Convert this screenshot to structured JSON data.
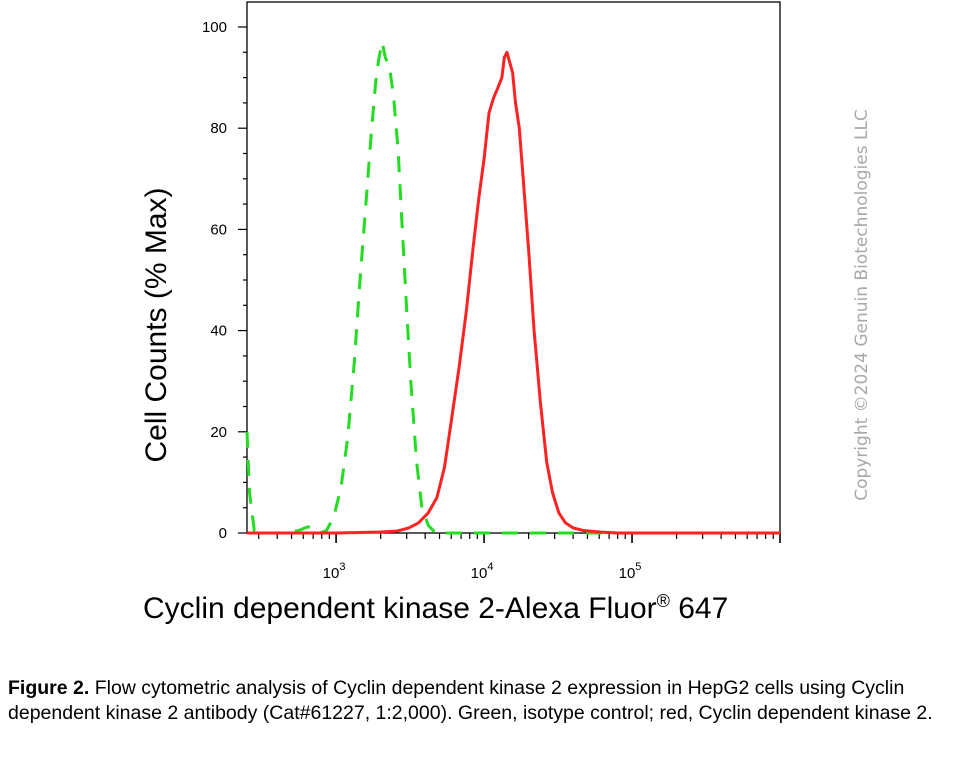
{
  "chart_data": {
    "type": "line",
    "ylabel": "Cell Counts (% Max)",
    "xlabel": "Cyclin dependent kinase 2-Alexa Fluor",
    "xlabel_sup": "®",
    "xlabel_suffix": " 647",
    "x_scale": "log",
    "xlim": [
      250,
      1000000
    ],
    "ylim": [
      0,
      100
    ],
    "y_ticks": [
      0,
      20,
      40,
      60,
      80,
      100
    ],
    "x_ticks": [
      {
        "value": 1000,
        "base": "10",
        "exp": "3"
      },
      {
        "value": 10000,
        "base": "10",
        "exp": "4"
      },
      {
        "value": 100000,
        "base": "10",
        "exp": "5"
      }
    ],
    "grid": false,
    "legend": "none",
    "series": [
      {
        "color": "#22dd22",
        "style": "dashed",
        "points": [
          [
            250,
            20
          ],
          [
            260,
            8
          ],
          [
            280,
            0.5
          ],
          [
            320,
            0
          ],
          [
            450,
            0
          ],
          [
            560,
            0.5
          ],
          [
            640,
            1.2
          ],
          [
            720,
            1
          ],
          [
            780,
            0
          ],
          [
            860,
            0.5
          ],
          [
            960,
            3
          ],
          [
            1080,
            9
          ],
          [
            1200,
            19
          ],
          [
            1330,
            34
          ],
          [
            1450,
            50
          ],
          [
            1580,
            64
          ],
          [
            1720,
            78
          ],
          [
            1850,
            89
          ],
          [
            1950,
            94
          ],
          [
            2050,
            97
          ],
          [
            2150,
            94
          ],
          [
            2300,
            92
          ],
          [
            2450,
            86
          ],
          [
            2620,
            76
          ],
          [
            2800,
            60
          ],
          [
            3000,
            44
          ],
          [
            3200,
            30
          ],
          [
            3500,
            14
          ],
          [
            3800,
            5
          ],
          [
            4200,
            1.5
          ],
          [
            4700,
            0
          ],
          [
            6000,
            0
          ],
          [
            1000000,
            0
          ]
        ]
      },
      {
        "color": "#ff2222",
        "style": "solid",
        "points": [
          [
            250,
            0
          ],
          [
            1000,
            0
          ],
          [
            2000,
            0.2
          ],
          [
            2600,
            0.4
          ],
          [
            3100,
            1
          ],
          [
            3600,
            2
          ],
          [
            4200,
            4
          ],
          [
            4800,
            7
          ],
          [
            5400,
            13
          ],
          [
            6000,
            22
          ],
          [
            6800,
            33
          ],
          [
            7600,
            44
          ],
          [
            8400,
            56
          ],
          [
            9200,
            66
          ],
          [
            10000,
            74
          ],
          [
            10800,
            83
          ],
          [
            11600,
            86
          ],
          [
            12400,
            88
          ],
          [
            13200,
            90
          ],
          [
            13700,
            94
          ],
          [
            14300,
            95
          ],
          [
            14900,
            93
          ],
          [
            15600,
            91
          ],
          [
            16300,
            85
          ],
          [
            17300,
            80
          ],
          [
            18500,
            69
          ],
          [
            20000,
            56
          ],
          [
            21800,
            40
          ],
          [
            24000,
            26
          ],
          [
            26500,
            14
          ],
          [
            29000,
            8
          ],
          [
            32000,
            4
          ],
          [
            35500,
            2
          ],
          [
            40000,
            1
          ],
          [
            47000,
            0.5
          ],
          [
            60000,
            0.2
          ],
          [
            80000,
            0
          ],
          [
            1000000,
            0
          ]
        ]
      }
    ]
  },
  "watermark": "Copyright ©2024 Genuin Biotechnologies LLC",
  "caption": {
    "label": "Figure 2.",
    "text": " Flow cytometric analysis of Cyclin dependent kinase 2 expression in HepG2 cells using Cyclin dependent kinase 2 antibody (Cat#61227, 1:2,000). Green, isotype control; red, Cyclin dependent kinase 2."
  }
}
